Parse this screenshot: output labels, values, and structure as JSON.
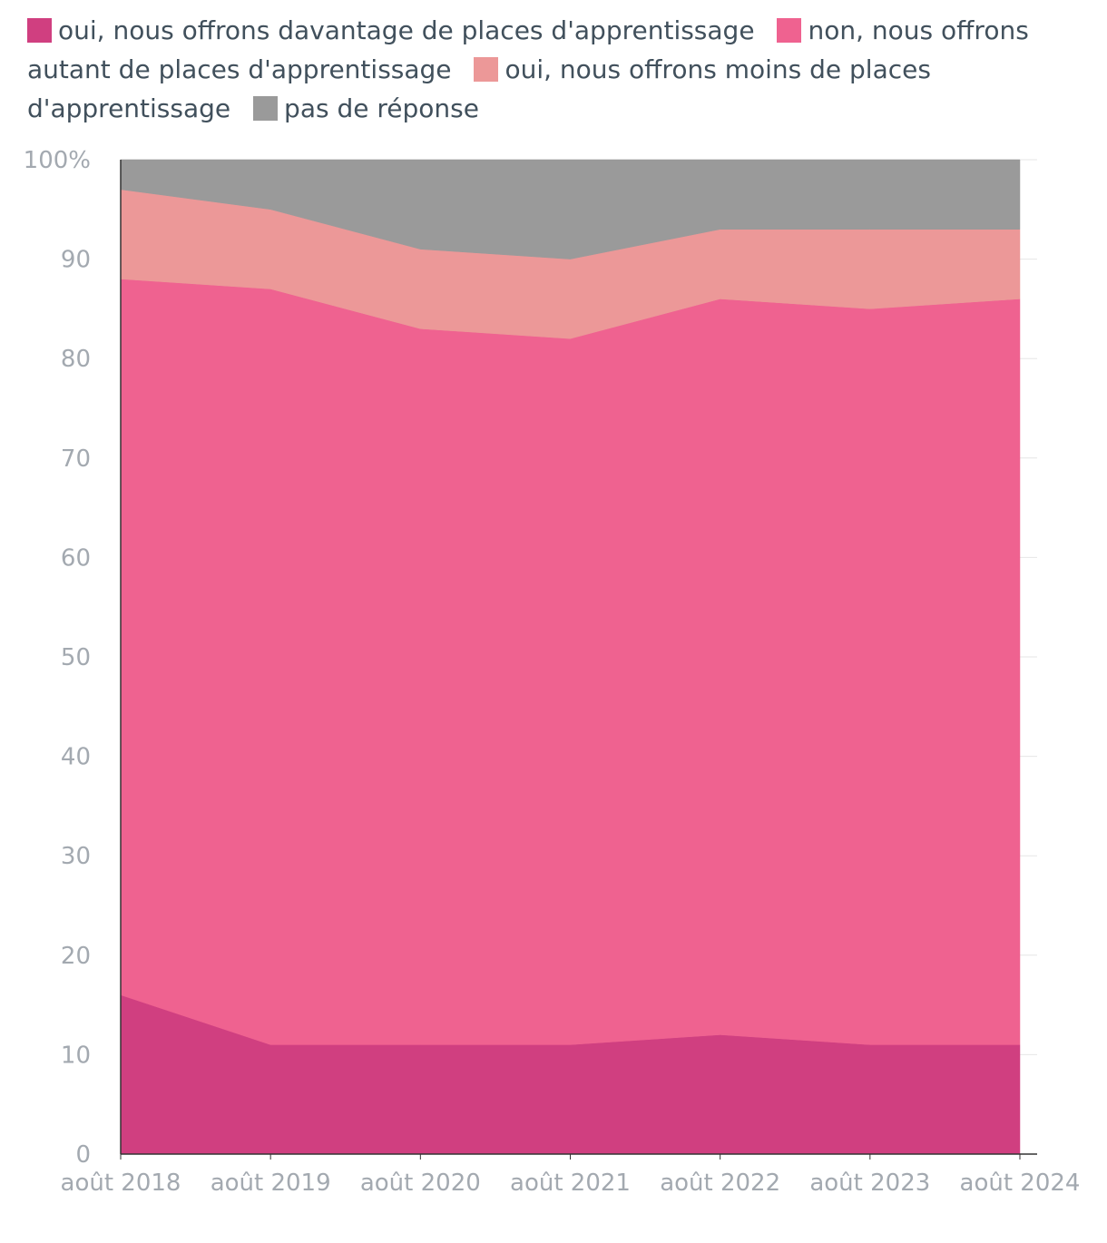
{
  "chart_data": {
    "type": "area",
    "stacked": true,
    "categories": [
      "août 2018",
      "août 2019",
      "août 2020",
      "août 2021",
      "août 2022",
      "août 2023",
      "août 2024"
    ],
    "series": [
      {
        "name": "oui, nous offrons davantage de places d'apprentissage",
        "color": "#d03f80",
        "values": [
          16,
          11,
          11,
          11,
          12,
          11,
          11
        ]
      },
      {
        "name": "non, nous offrons autant de places d'apprentissage",
        "color": "#ef6290",
        "values": [
          72,
          76,
          72,
          71,
          74,
          74,
          75
        ]
      },
      {
        "name": "oui, nous offrons moins de places d'apprentissage",
        "color": "#ec9898",
        "values": [
          9,
          8,
          8,
          8,
          7,
          8,
          7
        ]
      },
      {
        "name": "pas de réponse",
        "color": "#9a9a9a",
        "values": [
          3,
          5,
          9,
          10,
          7,
          7,
          7
        ]
      }
    ],
    "yticks": [
      "0",
      "10",
      "20",
      "30",
      "40",
      "50",
      "60",
      "70",
      "80",
      "90",
      "100%"
    ],
    "ylim": [
      0,
      100
    ],
    "grid": true,
    "legend_position": "top"
  }
}
